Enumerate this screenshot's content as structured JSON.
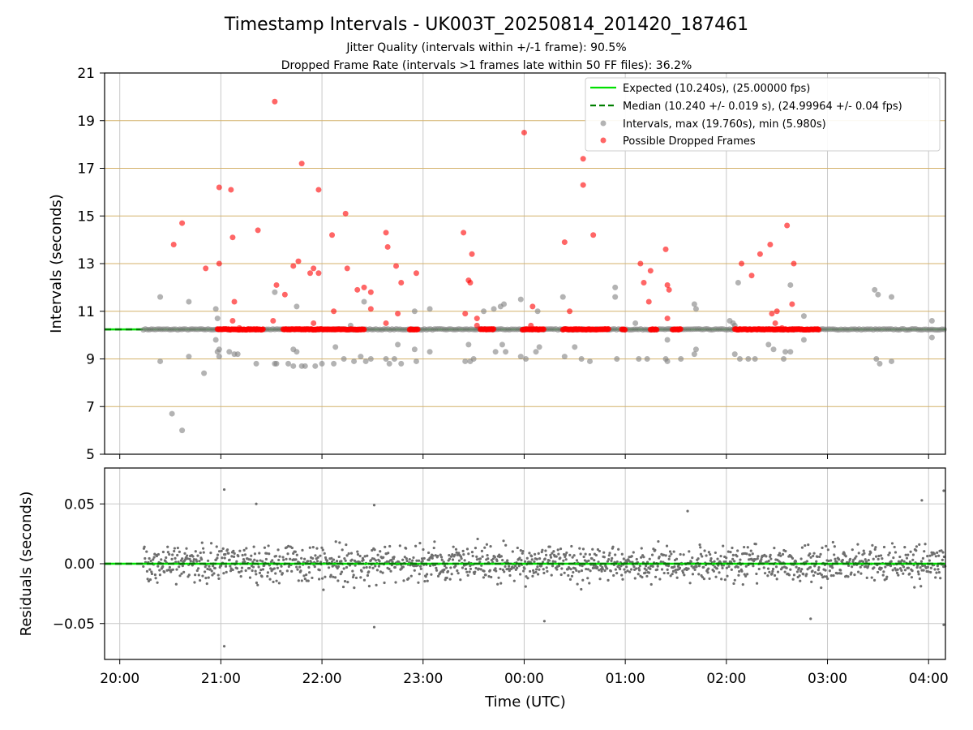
{
  "figure": {
    "title": "Timestamp Intervals - UK003T_20250814_201420_187461",
    "subtitle_1": "Jitter Quality (intervals within +/-1 frame): 90.5%",
    "subtitle_2": "Dropped Frame Rate (intervals >1 frames late within 50 FF files): 36.2%",
    "xlabel": "Time (UTC)"
  },
  "colors": {
    "expected": "#00e000",
    "median": "#007f00",
    "intervals": "#808080",
    "dropped": "#ff0000",
    "hline": "#d4b26a",
    "grid": "#c8c8c8"
  },
  "chart_data": [
    {
      "type": "scatter",
      "ylabel": "Intervals (seconds)",
      "xlim": [
        "19:51",
        "04:10"
      ],
      "ylim": [
        5,
        21
      ],
      "x_ticks": [
        "20:00",
        "21:00",
        "22:00",
        "23:00",
        "00:00",
        "01:00",
        "02:00",
        "03:00",
        "04:00"
      ],
      "y_ticks": [
        5,
        7,
        9,
        11,
        13,
        15,
        17,
        19,
        21
      ],
      "grid": "vertical lines at hours; horizontal lines at odd y-values",
      "legend_position": "top-right",
      "legend": [
        "Expected (10.240s), (25.00000 fps)",
        "Median (10.240 +/- 0.019 s), (24.99964 +/- 0.04 fps)",
        "Intervals, max (19.760s), min (5.980s)",
        "Possible Dropped Frames"
      ],
      "expected_line": 10.24,
      "median_line": 10.24,
      "data_span": [
        "20:14",
        "04:10"
      ],
      "dense_band_value": 10.24,
      "intervals_max": 19.76,
      "intervals_min": 5.98,
      "dropped_band_runs": [
        [
          "20:58",
          "21:25"
        ],
        [
          "21:37",
          "22:25"
        ],
        [
          "22:52",
          "22:57"
        ],
        [
          "23:34",
          "23:42"
        ],
        [
          "23:59",
          "00:12"
        ],
        [
          "00:23",
          "00:50"
        ],
        [
          "00:58",
          "01:00"
        ],
        [
          "01:15",
          "01:19"
        ],
        [
          "01:28",
          "01:33"
        ],
        [
          "02:05",
          "02:55"
        ]
      ],
      "dropped_frames": [
        [
          "20:32",
          13.8
        ],
        [
          "20:37",
          14.7
        ],
        [
          "20:51",
          12.8
        ],
        [
          "20:59",
          16.2
        ],
        [
          "20:59",
          13.0
        ],
        [
          "21:06",
          16.1
        ],
        [
          "21:07",
          14.1
        ],
        [
          "21:08",
          11.4
        ],
        [
          "21:07",
          10.6
        ],
        [
          "21:11",
          10.3
        ],
        [
          "21:22",
          14.4
        ],
        [
          "21:31",
          10.6
        ],
        [
          "21:32",
          19.8
        ],
        [
          "21:33",
          12.1
        ],
        [
          "21:38",
          11.7
        ],
        [
          "21:43",
          12.9
        ],
        [
          "21:46",
          13.1
        ],
        [
          "21:48",
          17.2
        ],
        [
          "21:53",
          12.6
        ],
        [
          "21:55",
          12.8
        ],
        [
          "21:55",
          10.5
        ],
        [
          "21:58",
          12.6
        ],
        [
          "21:58",
          16.1
        ],
        [
          "22:06",
          14.2
        ],
        [
          "22:07",
          11.0
        ],
        [
          "22:14",
          15.1
        ],
        [
          "22:15",
          12.8
        ],
        [
          "22:21",
          11.9
        ],
        [
          "22:25",
          12.0
        ],
        [
          "22:29",
          11.8
        ],
        [
          "22:29",
          11.1
        ],
        [
          "22:38",
          14.3
        ],
        [
          "22:39",
          13.7
        ],
        [
          "22:38",
          10.5
        ],
        [
          "22:44",
          12.9
        ],
        [
          "22:45",
          10.9
        ],
        [
          "22:47",
          12.2
        ],
        [
          "22:56",
          12.6
        ],
        [
          "23:24",
          14.3
        ],
        [
          "23:25",
          10.9
        ],
        [
          "23:27",
          12.3
        ],
        [
          "23:28",
          12.2
        ],
        [
          "23:29",
          13.4
        ],
        [
          "23:32",
          10.7
        ],
        [
          "23:32",
          10.4
        ],
        [
          "24:00",
          18.5
        ],
        [
          "24:04",
          10.4
        ],
        [
          "24:05",
          11.2
        ],
        [
          "24:24",
          13.9
        ],
        [
          "24:27",
          11.0
        ],
        [
          "24:35",
          17.4
        ],
        [
          "24:35",
          16.3
        ],
        [
          "24:41",
          14.2
        ],
        [
          "25:09",
          13.0
        ],
        [
          "25:11",
          12.2
        ],
        [
          "25:14",
          11.4
        ],
        [
          "25:15",
          12.7
        ],
        [
          "25:24",
          13.6
        ],
        [
          "25:25",
          12.1
        ],
        [
          "25:25",
          10.7
        ],
        [
          "25:26",
          11.9
        ],
        [
          "26:09",
          13.0
        ],
        [
          "26:15",
          12.5
        ],
        [
          "26:20",
          13.4
        ],
        [
          "26:26",
          13.8
        ],
        [
          "26:27",
          10.9
        ],
        [
          "26:29",
          10.5
        ],
        [
          "26:30",
          11.0
        ],
        [
          "26:33",
          10.3
        ],
        [
          "26:36",
          14.6
        ],
        [
          "26:39",
          11.3
        ],
        [
          "26:40",
          13.0
        ]
      ],
      "interval_outliers": [
        [
          "20:24",
          11.6
        ],
        [
          "20:24",
          8.9
        ],
        [
          "20:31",
          6.7
        ],
        [
          "20:37",
          6.0
        ],
        [
          "20:41",
          11.4
        ],
        [
          "20:41",
          9.1
        ],
        [
          "20:50",
          8.4
        ],
        [
          "20:57",
          11.1
        ],
        [
          "20:58",
          10.7
        ],
        [
          "20:57",
          9.8
        ],
        [
          "20:58",
          9.3
        ],
        [
          "20:59",
          9.4
        ],
        [
          "20:59",
          9.1
        ],
        [
          "21:05",
          9.3
        ],
        [
          "21:08",
          9.2
        ],
        [
          "21:10",
          9.2
        ],
        [
          "21:21",
          8.8
        ],
        [
          "21:32",
          11.8
        ],
        [
          "21:32",
          8.8
        ],
        [
          "21:33",
          8.8
        ],
        [
          "21:40",
          8.8
        ],
        [
          "21:43",
          9.4
        ],
        [
          "21:43",
          8.7
        ],
        [
          "21:45",
          11.2
        ],
        [
          "21:45",
          9.3
        ],
        [
          "21:48",
          8.7
        ],
        [
          "21:50",
          8.7
        ],
        [
          "21:56",
          8.7
        ],
        [
          "22:00",
          8.8
        ],
        [
          "22:07",
          8.8
        ],
        [
          "22:08",
          9.5
        ],
        [
          "22:13",
          9.0
        ],
        [
          "22:17",
          10.4
        ],
        [
          "22:19",
          8.9
        ],
        [
          "22:23",
          9.1
        ],
        [
          "22:25",
          11.4
        ],
        [
          "22:26",
          8.9
        ],
        [
          "22:29",
          9.0
        ],
        [
          "22:38",
          9.0
        ],
        [
          "22:40",
          8.8
        ],
        [
          "22:43",
          9.0
        ],
        [
          "22:45",
          9.6
        ],
        [
          "22:47",
          8.8
        ],
        [
          "22:55",
          11.0
        ],
        [
          "22:55",
          9.4
        ],
        [
          "22:56",
          8.9
        ],
        [
          "23:04",
          11.1
        ],
        [
          "23:04",
          9.3
        ],
        [
          "23:25",
          8.9
        ],
        [
          "23:27",
          9.6
        ],
        [
          "23:28",
          8.9
        ],
        [
          "23:30",
          9.0
        ],
        [
          "23:36",
          11.0
        ],
        [
          "23:42",
          11.1
        ],
        [
          "23:43",
          9.3
        ],
        [
          "23:46",
          11.2
        ],
        [
          "23:47",
          9.6
        ],
        [
          "23:48",
          11.3
        ],
        [
          "23:49",
          9.3
        ],
        [
          "23:58",
          11.5
        ],
        [
          "23:58",
          9.1
        ],
        [
          "24:01",
          9.0
        ],
        [
          "24:07",
          9.3
        ],
        [
          "24:08",
          11.0
        ],
        [
          "24:09",
          9.5
        ],
        [
          "24:23",
          11.6
        ],
        [
          "24:24",
          9.1
        ],
        [
          "24:30",
          9.5
        ],
        [
          "24:34",
          9.0
        ],
        [
          "24:39",
          8.9
        ],
        [
          "24:54",
          12.0
        ],
        [
          "24:54",
          11.6
        ],
        [
          "24:55",
          9.0
        ],
        [
          "25:06",
          10.5
        ],
        [
          "25:08",
          9.0
        ],
        [
          "25:13",
          9.0
        ],
        [
          "25:24",
          9.0
        ],
        [
          "25:25",
          8.9
        ],
        [
          "25:25",
          9.8
        ],
        [
          "25:33",
          9.0
        ],
        [
          "25:41",
          11.3
        ],
        [
          "25:41",
          9.2
        ],
        [
          "25:42",
          11.1
        ],
        [
          "25:42",
          9.4
        ],
        [
          "26:02",
          10.6
        ],
        [
          "26:04",
          10.5
        ],
        [
          "26:05",
          10.4
        ],
        [
          "26:05",
          9.2
        ],
        [
          "26:07",
          12.2
        ],
        [
          "26:08",
          9.0
        ],
        [
          "26:13",
          9.0
        ],
        [
          "26:17",
          9.0
        ],
        [
          "26:25",
          9.6
        ],
        [
          "26:28",
          9.4
        ],
        [
          "26:34",
          9.0
        ],
        [
          "26:35",
          9.3
        ],
        [
          "26:38",
          12.1
        ],
        [
          "26:38",
          9.3
        ],
        [
          "26:46",
          10.8
        ],
        [
          "26:46",
          9.8
        ],
        [
          "27:28",
          11.9
        ],
        [
          "27:30",
          11.7
        ],
        [
          "27:31",
          8.8
        ],
        [
          "27:29",
          9.0
        ],
        [
          "27:38",
          11.6
        ],
        [
          "27:38",
          8.9
        ],
        [
          "28:02",
          10.6
        ],
        [
          "28:02",
          9.9
        ]
      ]
    },
    {
      "type": "scatter",
      "ylabel": "Residuals (seconds)",
      "xlim": [
        "19:51",
        "04:10"
      ],
      "ylim": [
        -0.08,
        0.08
      ],
      "x_ticks": [
        "20:00",
        "21:00",
        "22:00",
        "23:00",
        "00:00",
        "01:00",
        "02:00",
        "03:00",
        "04:00"
      ],
      "y_ticks": [
        "0.05",
        "0.00",
        "−0.05"
      ],
      "y_tick_values": [
        0.05,
        0.0,
        -0.05
      ],
      "grid": "vertical lines at hours; horizontal lines at y ticks",
      "zero_line": 0.0,
      "data_span": [
        "20:14",
        "04:10"
      ],
      "typical_spread": 0.025,
      "outliers": [
        [
          "21:02",
          0.062
        ],
        [
          "21:02",
          -0.069
        ],
        [
          "21:21",
          0.05
        ],
        [
          "22:31",
          0.049
        ],
        [
          "22:31",
          -0.053
        ],
        [
          "24:12",
          -0.048
        ],
        [
          "25:37",
          0.044
        ],
        [
          "26:50",
          -0.046
        ],
        [
          "27:56",
          0.053
        ],
        [
          "28:09",
          0.061
        ],
        [
          "28:09",
          -0.051
        ]
      ]
    }
  ]
}
